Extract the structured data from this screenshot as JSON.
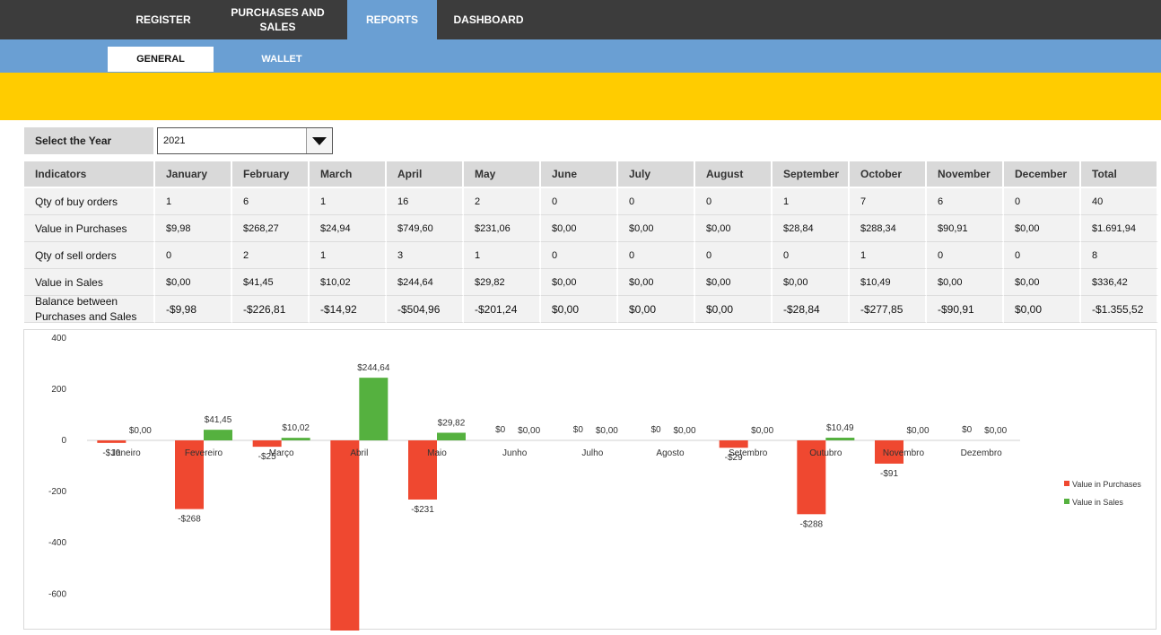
{
  "nav": {
    "tabs": [
      {
        "label": "REGISTER"
      },
      {
        "label": "PURCHASES AND SALES"
      },
      {
        "label": "REPORTS",
        "active": true
      },
      {
        "label": "DASHBOARD"
      }
    ],
    "subtabs": [
      {
        "label": "GENERAL",
        "active": true
      },
      {
        "label": "WALLET"
      }
    ]
  },
  "colors": {
    "nav_bg": "#3c3c3c",
    "accent": "#6a9fd3",
    "banner": "#ffcc00",
    "purchases": "#ef4830",
    "sales": "#55b13f"
  },
  "year_selector": {
    "label": "Select the Year",
    "value": "2021"
  },
  "table": {
    "headers": [
      "Indicators",
      "January",
      "February",
      "March",
      "April",
      "May",
      "June",
      "July",
      "August",
      "September",
      "October",
      "November",
      "December",
      "Total"
    ],
    "rows": [
      {
        "label": "Qty of buy orders",
        "values": [
          "1",
          "6",
          "1",
          "16",
          "2",
          "0",
          "0",
          "0",
          "1",
          "7",
          "6",
          "0",
          "40"
        ]
      },
      {
        "label": "Value in Purchases",
        "values": [
          "$9,98",
          "$268,27",
          "$24,94",
          "$749,60",
          "$231,06",
          "$0,00",
          "$0,00",
          "$0,00",
          "$28,84",
          "$288,34",
          "$90,91",
          "$0,00",
          "$1.691,94"
        ]
      },
      {
        "label": "Qty of sell orders",
        "values": [
          "0",
          "2",
          "1",
          "3",
          "1",
          "0",
          "0",
          "0",
          "0",
          "1",
          "0",
          "0",
          "8"
        ]
      },
      {
        "label": "Value in Sales",
        "values": [
          "$0,00",
          "$41,45",
          "$10,02",
          "$244,64",
          "$29,82",
          "$0,00",
          "$0,00",
          "$0,00",
          "$0,00",
          "$10,49",
          "$0,00",
          "$0,00",
          "$336,42"
        ]
      },
      {
        "label": "Balance between Purchases and Sales",
        "values": [
          "-$9,98",
          "-$226,81",
          "-$14,92",
          "-$504,96",
          "-$201,24",
          "$0,00",
          "$0,00",
          "$0,00",
          "-$28,84",
          "-$277,85",
          "-$90,91",
          "$0,00",
          "-$1.355,52"
        ]
      }
    ]
  },
  "chart_data": {
    "type": "bar",
    "categories": [
      "Janeiro",
      "Fevereiro",
      "Março",
      "Abril",
      "Maio",
      "Junho",
      "Julho",
      "Agosto",
      "Setembro",
      "Outubro",
      "Novembro",
      "Dezembro"
    ],
    "series": [
      {
        "name": "Value in Purchases",
        "values": [
          -9.98,
          -268.27,
          -24.94,
          -749.6,
          -231.06,
          0,
          0,
          0,
          -28.84,
          -288.34,
          -90.91,
          0
        ],
        "labels": [
          "-$10",
          "-$268",
          "-$25",
          "",
          "-$231",
          "$0",
          "$0",
          "$0",
          "-$29",
          "-$288",
          "-$91",
          "$0"
        ]
      },
      {
        "name": "Value in Sales",
        "values": [
          0,
          41.45,
          10.02,
          244.64,
          29.82,
          0,
          0,
          0,
          0,
          10.49,
          0,
          0
        ],
        "labels": [
          "$0,00",
          "$41,45",
          "$10,02",
          "$244,64",
          "$29,82",
          "$0,00",
          "$0,00",
          "$0,00",
          "$0,00",
          "$10,49",
          "$0,00",
          "$0,00"
        ]
      }
    ],
    "yticks": [
      "400",
      "200",
      "0",
      "-200",
      "-400",
      "-600"
    ],
    "ylim": [
      -800,
      400
    ],
    "legend_position": "right",
    "grid": false
  }
}
